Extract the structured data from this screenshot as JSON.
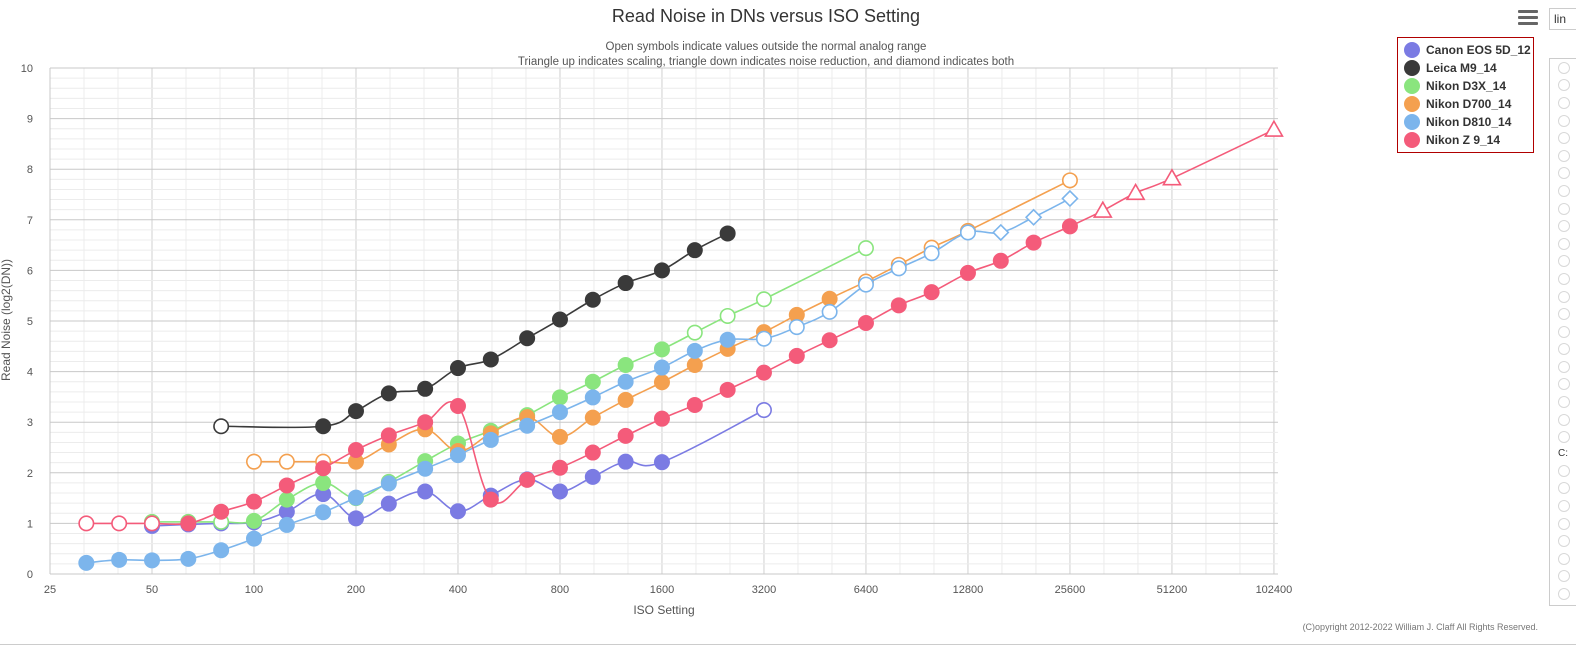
{
  "toolbar": {
    "menu_icon": "hamburger-menu-icon",
    "scale_select_value": "lin"
  },
  "side_panel": {
    "label": "C:",
    "radio_count_top": 22,
    "radio_count_bottom": 8
  },
  "chart_data": {
    "type": "line",
    "title": "Read Noise in DNs versus ISO Setting",
    "subtitle_lines": [
      "Open symbols indicate values outside the normal analog range",
      "Triangle up indicates scaling, triangle down indicates noise reduction, and diamond indicates both"
    ],
    "xlabel": "ISO Setting",
    "ylabel": "Read Noise (log2(DN))",
    "x_scale": "log2",
    "x_ticks": [
      25,
      50,
      100,
      200,
      400,
      800,
      1600,
      3200,
      6400,
      12800,
      25600,
      51200,
      102400
    ],
    "x_tick_labels": [
      "25",
      "50",
      "100",
      "200",
      "400",
      "800",
      "1600",
      "3200",
      "6400",
      "12800",
      "25600",
      "51200",
      "102400"
    ],
    "ylim": [
      0,
      10
    ],
    "y_ticks": [
      0,
      1,
      2,
      3,
      4,
      5,
      6,
      7,
      8,
      9,
      10
    ],
    "y_tick_labels": [
      "0",
      "1",
      "2",
      "3",
      "4",
      "5",
      "6",
      "7",
      "8",
      "9",
      "10"
    ],
    "grid": true,
    "legend_position": "top-right",
    "credits": "(C)opyright 2012-2022 William J. Claff All Rights Reserved.",
    "series": [
      {
        "name": "Canon EOS 5D_12",
        "color": "#7b7be3",
        "points": [
          {
            "x": 50,
            "y": 0.95,
            "m": "c"
          },
          {
            "x": 64,
            "y": 0.98,
            "m": "c"
          },
          {
            "x": 80,
            "y": 1.0,
            "m": "c"
          },
          {
            "x": 100,
            "y": 1.02,
            "m": "c"
          },
          {
            "x": 125,
            "y": 1.23,
            "m": "c"
          },
          {
            "x": 160,
            "y": 1.58,
            "m": "c"
          },
          {
            "x": 200,
            "y": 1.1,
            "m": "c"
          },
          {
            "x": 250,
            "y": 1.39,
            "m": "c"
          },
          {
            "x": 320,
            "y": 1.63,
            "m": "c"
          },
          {
            "x": 400,
            "y": 1.24,
            "m": "c"
          },
          {
            "x": 500,
            "y": 1.55,
            "m": "c"
          },
          {
            "x": 640,
            "y": 1.87,
            "m": "c"
          },
          {
            "x": 800,
            "y": 1.63,
            "m": "c"
          },
          {
            "x": 1000,
            "y": 1.92,
            "m": "c"
          },
          {
            "x": 1250,
            "y": 2.22,
            "m": "c"
          },
          {
            "x": 1600,
            "y": 2.21,
            "m": "c"
          },
          {
            "x": 3200,
            "y": 3.24,
            "m": "o"
          }
        ]
      },
      {
        "name": "Leica M9_14",
        "color": "#3a3a3a",
        "points": [
          {
            "x": 80,
            "y": 2.92,
            "m": "o"
          },
          {
            "x": 160,
            "y": 2.92,
            "m": "c"
          },
          {
            "x": 200,
            "y": 3.22,
            "m": "c"
          },
          {
            "x": 250,
            "y": 3.57,
            "m": "c"
          },
          {
            "x": 320,
            "y": 3.66,
            "m": "c"
          },
          {
            "x": 400,
            "y": 4.07,
            "m": "c"
          },
          {
            "x": 500,
            "y": 4.24,
            "m": "c"
          },
          {
            "x": 640,
            "y": 4.66,
            "m": "c"
          },
          {
            "x": 800,
            "y": 5.03,
            "m": "c"
          },
          {
            "x": 1000,
            "y": 5.42,
            "m": "c"
          },
          {
            "x": 1250,
            "y": 5.75,
            "m": "c"
          },
          {
            "x": 1600,
            "y": 6.0,
            "m": "c"
          },
          {
            "x": 2000,
            "y": 6.4,
            "m": "c"
          },
          {
            "x": 2500,
            "y": 6.73,
            "m": "c"
          }
        ]
      },
      {
        "name": "Nikon D3X_14",
        "color": "#8ae57e",
        "points": [
          {
            "x": 50,
            "y": 1.03,
            "m": "o"
          },
          {
            "x": 64,
            "y": 1.03,
            "m": "o"
          },
          {
            "x": 80,
            "y": 1.03,
            "m": "o"
          },
          {
            "x": 100,
            "y": 1.05,
            "m": "c"
          },
          {
            "x": 125,
            "y": 1.47,
            "m": "c"
          },
          {
            "x": 160,
            "y": 1.8,
            "m": "c"
          },
          {
            "x": 200,
            "y": 1.5,
            "m": "c"
          },
          {
            "x": 250,
            "y": 1.82,
            "m": "c"
          },
          {
            "x": 320,
            "y": 2.23,
            "m": "c"
          },
          {
            "x": 400,
            "y": 2.58,
            "m": "c"
          },
          {
            "x": 500,
            "y": 2.83,
            "m": "c"
          },
          {
            "x": 640,
            "y": 3.14,
            "m": "c"
          },
          {
            "x": 800,
            "y": 3.49,
            "m": "c"
          },
          {
            "x": 1000,
            "y": 3.8,
            "m": "c"
          },
          {
            "x": 1250,
            "y": 4.13,
            "m": "c"
          },
          {
            "x": 1600,
            "y": 4.44,
            "m": "c"
          },
          {
            "x": 2000,
            "y": 4.77,
            "m": "o"
          },
          {
            "x": 2500,
            "y": 5.1,
            "m": "o"
          },
          {
            "x": 3200,
            "y": 5.43,
            "m": "o"
          },
          {
            "x": 6400,
            "y": 6.44,
            "m": "o"
          }
        ]
      },
      {
        "name": "Nikon D700_14",
        "color": "#f4a04f",
        "points": [
          {
            "x": 100,
            "y": 2.22,
            "m": "o"
          },
          {
            "x": 125,
            "y": 2.22,
            "m": "o"
          },
          {
            "x": 160,
            "y": 2.22,
            "m": "o"
          },
          {
            "x": 200,
            "y": 2.22,
            "m": "c"
          },
          {
            "x": 250,
            "y": 2.56,
            "m": "c"
          },
          {
            "x": 320,
            "y": 2.86,
            "m": "c"
          },
          {
            "x": 400,
            "y": 2.43,
            "m": "c"
          },
          {
            "x": 500,
            "y": 2.78,
            "m": "c"
          },
          {
            "x": 640,
            "y": 3.1,
            "m": "c"
          },
          {
            "x": 800,
            "y": 2.71,
            "m": "c"
          },
          {
            "x": 1000,
            "y": 3.09,
            "m": "c"
          },
          {
            "x": 1250,
            "y": 3.44,
            "m": "c"
          },
          {
            "x": 1600,
            "y": 3.79,
            "m": "c"
          },
          {
            "x": 2000,
            "y": 4.13,
            "m": "c"
          },
          {
            "x": 2500,
            "y": 4.45,
            "m": "c"
          },
          {
            "x": 3200,
            "y": 4.78,
            "m": "c"
          },
          {
            "x": 4000,
            "y": 5.12,
            "m": "c"
          },
          {
            "x": 5000,
            "y": 5.44,
            "m": "c"
          },
          {
            "x": 6400,
            "y": 5.78,
            "m": "o"
          },
          {
            "x": 8000,
            "y": 6.11,
            "m": "o"
          },
          {
            "x": 10000,
            "y": 6.45,
            "m": "o"
          },
          {
            "x": 12800,
            "y": 6.78,
            "m": "o"
          },
          {
            "x": 25600,
            "y": 7.78,
            "m": "o"
          }
        ]
      },
      {
        "name": "Nikon D810_14",
        "color": "#7cb5ec",
        "points": [
          {
            "x": 32,
            "y": 0.22,
            "m": "c"
          },
          {
            "x": 40,
            "y": 0.28,
            "m": "c"
          },
          {
            "x": 50,
            "y": 0.27,
            "m": "c"
          },
          {
            "x": 64,
            "y": 0.3,
            "m": "c"
          },
          {
            "x": 80,
            "y": 0.47,
            "m": "c"
          },
          {
            "x": 100,
            "y": 0.7,
            "m": "c"
          },
          {
            "x": 125,
            "y": 0.97,
            "m": "c"
          },
          {
            "x": 160,
            "y": 1.22,
            "m": "c"
          },
          {
            "x": 200,
            "y": 1.51,
            "m": "c"
          },
          {
            "x": 250,
            "y": 1.79,
            "m": "c"
          },
          {
            "x": 320,
            "y": 2.08,
            "m": "c"
          },
          {
            "x": 400,
            "y": 2.35,
            "m": "c"
          },
          {
            "x": 500,
            "y": 2.65,
            "m": "c"
          },
          {
            "x": 640,
            "y": 2.93,
            "m": "c"
          },
          {
            "x": 800,
            "y": 3.2,
            "m": "c"
          },
          {
            "x": 1000,
            "y": 3.49,
            "m": "c"
          },
          {
            "x": 1250,
            "y": 3.8,
            "m": "c"
          },
          {
            "x": 1600,
            "y": 4.08,
            "m": "c"
          },
          {
            "x": 2000,
            "y": 4.41,
            "m": "c"
          },
          {
            "x": 2500,
            "y": 4.63,
            "m": "c"
          },
          {
            "x": 3200,
            "y": 4.65,
            "m": "o"
          },
          {
            "x": 4000,
            "y": 4.88,
            "m": "o"
          },
          {
            "x": 5000,
            "y": 5.18,
            "m": "o"
          },
          {
            "x": 6400,
            "y": 5.72,
            "m": "o"
          },
          {
            "x": 8000,
            "y": 6.04,
            "m": "o"
          },
          {
            "x": 10000,
            "y": 6.34,
            "m": "o"
          },
          {
            "x": 12800,
            "y": 6.75,
            "m": "o"
          },
          {
            "x": 16000,
            "y": 6.75,
            "m": "d"
          },
          {
            "x": 20000,
            "y": 7.05,
            "m": "d"
          },
          {
            "x": 25600,
            "y": 7.42,
            "m": "d"
          }
        ]
      },
      {
        "name": "Nikon Z 9_14",
        "color": "#f45b7a",
        "points": [
          {
            "x": 32,
            "y": 1.0,
            "m": "o"
          },
          {
            "x": 40,
            "y": 1.0,
            "m": "o"
          },
          {
            "x": 50,
            "y": 1.0,
            "m": "o"
          },
          {
            "x": 64,
            "y": 1.0,
            "m": "c"
          },
          {
            "x": 80,
            "y": 1.23,
            "m": "c"
          },
          {
            "x": 100,
            "y": 1.43,
            "m": "c"
          },
          {
            "x": 125,
            "y": 1.75,
            "m": "c"
          },
          {
            "x": 160,
            "y": 2.09,
            "m": "c"
          },
          {
            "x": 200,
            "y": 2.45,
            "m": "c"
          },
          {
            "x": 250,
            "y": 2.74,
            "m": "c"
          },
          {
            "x": 320,
            "y": 3.0,
            "m": "c"
          },
          {
            "x": 400,
            "y": 3.32,
            "m": "c"
          },
          {
            "x": 500,
            "y": 1.47,
            "m": "c"
          },
          {
            "x": 640,
            "y": 1.86,
            "m": "c"
          },
          {
            "x": 800,
            "y": 2.1,
            "m": "c"
          },
          {
            "x": 1000,
            "y": 2.4,
            "m": "c"
          },
          {
            "x": 1250,
            "y": 2.73,
            "m": "c"
          },
          {
            "x": 1600,
            "y": 3.07,
            "m": "c"
          },
          {
            "x": 2000,
            "y": 3.34,
            "m": "c"
          },
          {
            "x": 2500,
            "y": 3.64,
            "m": "c"
          },
          {
            "x": 3200,
            "y": 3.98,
            "m": "c"
          },
          {
            "x": 4000,
            "y": 4.31,
            "m": "c"
          },
          {
            "x": 5000,
            "y": 4.62,
            "m": "c"
          },
          {
            "x": 6400,
            "y": 4.96,
            "m": "c"
          },
          {
            "x": 8000,
            "y": 5.31,
            "m": "c"
          },
          {
            "x": 10000,
            "y": 5.57,
            "m": "c"
          },
          {
            "x": 12800,
            "y": 5.95,
            "m": "c"
          },
          {
            "x": 16000,
            "y": 6.19,
            "m": "c"
          },
          {
            "x": 20000,
            "y": 6.55,
            "m": "c"
          },
          {
            "x": 25600,
            "y": 6.87,
            "m": "c"
          },
          {
            "x": 32000,
            "y": 7.18,
            "m": "t"
          },
          {
            "x": 40000,
            "y": 7.53,
            "m": "t"
          },
          {
            "x": 51200,
            "y": 7.82,
            "m": "t"
          },
          {
            "x": 102400,
            "y": 8.78,
            "m": "t"
          }
        ]
      }
    ]
  }
}
